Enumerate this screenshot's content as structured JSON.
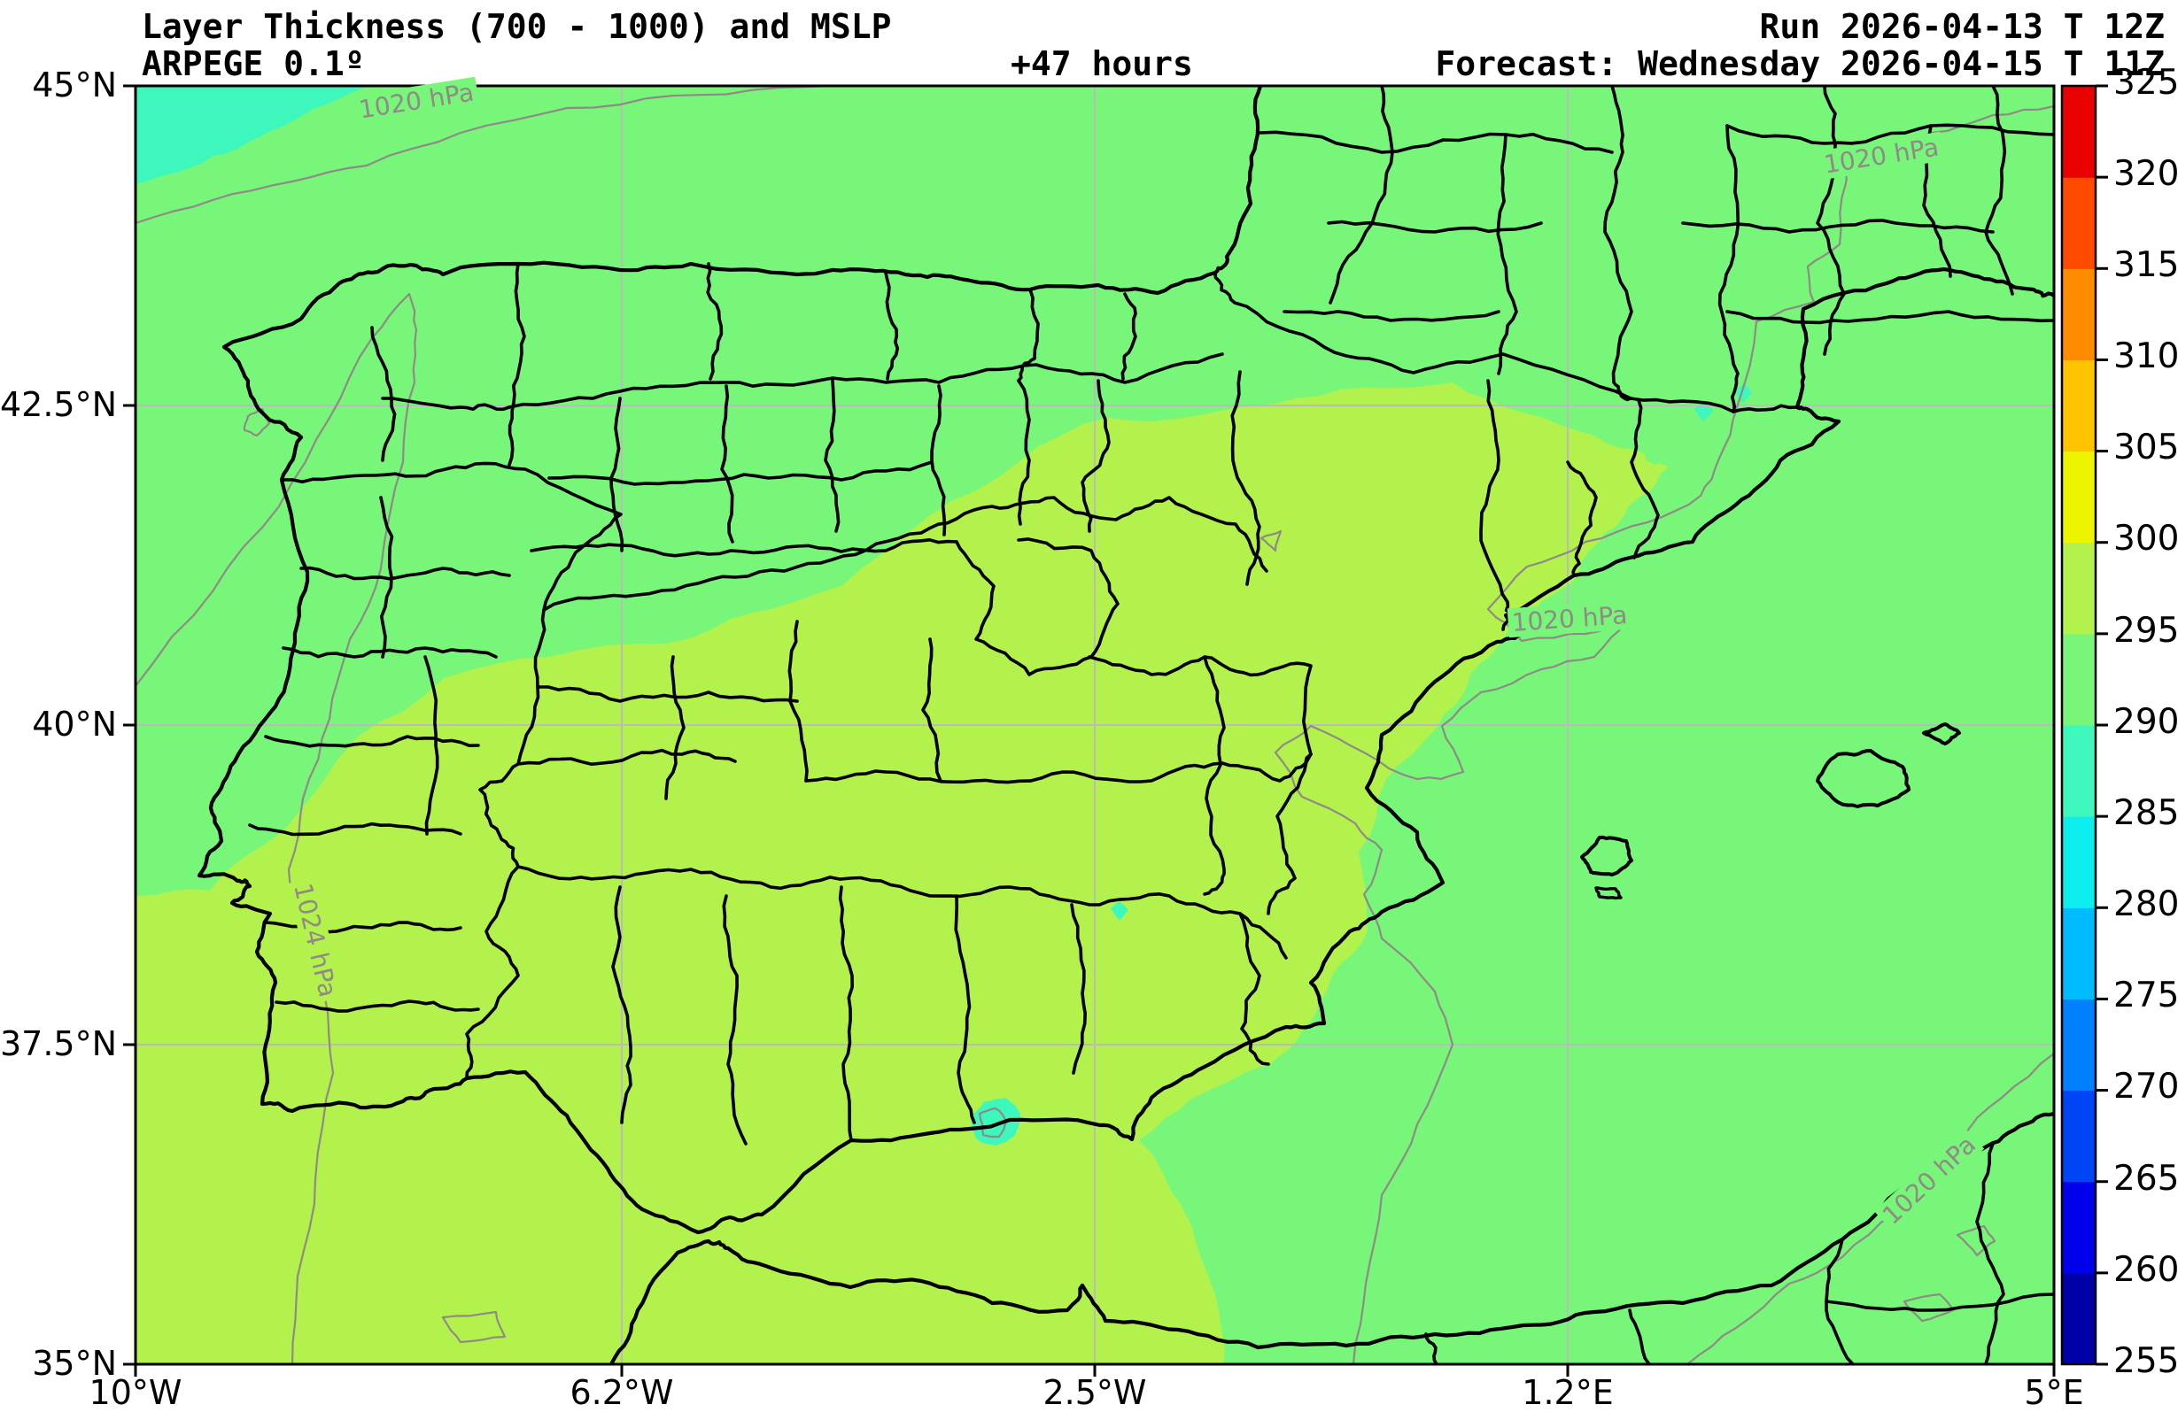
{
  "header": {
    "title": "Layer Thickness (700 - 1000) and MSLP",
    "model": "ARPEGE 0.1º",
    "lead_time": "+47 hours",
    "run": "Run 2026-04-13 T 12Z",
    "forecast": "Forecast: Wednesday 2026-04-15 T 11Z"
  },
  "axes": {
    "x_ticks": [
      "10°W",
      "6.2°W",
      "2.5°W",
      "1.2°E",
      "5°E"
    ],
    "y_ticks": [
      "45°N",
      "42.5°N",
      "40°N",
      "37.5°N",
      "35°N"
    ]
  },
  "colorbar": {
    "title": "",
    "tick_labels": [
      "255",
      "260",
      "265",
      "270",
      "275",
      "280",
      "285",
      "290",
      "295",
      "300",
      "305",
      "310",
      "315",
      "320",
      "325"
    ],
    "levels": [
      255,
      260,
      265,
      270,
      275,
      280,
      285,
      290,
      295,
      300,
      305,
      310,
      315,
      320,
      325
    ],
    "segment_colors": [
      "#0000A8",
      "#0000EB",
      "#0045F5",
      "#0080FC",
      "#00BCFF",
      "#0CEEEE",
      "#3DF7BC",
      "#77F679",
      "#B3F24C",
      "#EDF400",
      "#FFC400",
      "#FF8C00",
      "#FF4A00",
      "#E90000"
    ]
  },
  "map": {
    "contour_labels": [
      {
        "text": "1020 hPa"
      },
      {
        "text": "1020 hPa"
      },
      {
        "text": "1020 hPa"
      },
      {
        "text": "1024 hPa"
      },
      {
        "text": "1020 hPa"
      }
    ],
    "fill_colors": {
      "thickness_285_290": "#3DF7BC",
      "thickness_290_295": "#77F679",
      "thickness_295_300": "#B3F24C"
    },
    "line_colors": {
      "boundaries": "#000000",
      "mslp_contour": "#8F8A86",
      "gridline": "#BBBBBB"
    }
  }
}
